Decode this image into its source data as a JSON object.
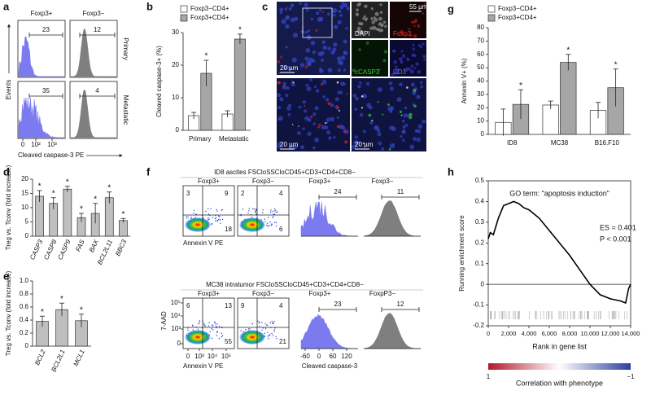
{
  "panel_a": {
    "label": "a",
    "columns": [
      "Foxp3+",
      "Foxp3−"
    ],
    "rows": [
      "Primary",
      "Metastatic"
    ],
    "gates": [
      [
        23,
        12
      ],
      [
        35,
        4
      ]
    ],
    "ylabel": "Events",
    "xticks": [
      0,
      {
        "value": 100,
        "label": "10²"
      },
      {
        "value": 1000,
        "label": "10³"
      }
    ],
    "xlabel": "Cleaved caspase-3 PE"
  },
  "panel_c": {
    "label": "c",
    "channels": [
      "DAPI",
      "Foxp3",
      "cCASP3",
      "CD3"
    ],
    "scale_bars": [
      "55 µm",
      "20 µm",
      "20 µm",
      "20 µm"
    ]
  },
  "panel_f": {
    "label": "f",
    "groups": [
      {
        "title": "ID8 ascites FSCloSSCloCD45+CD3+CD4+CD8−",
        "plots": [
          "Foxp3+",
          "Foxp3−"
        ],
        "quadrants": [
          [
            3,
            9,
            18
          ],
          [
            2,
            4,
            6
          ]
        ],
        "hists": [
          "Foxp3+",
          "Foxp3−"
        ],
        "gates": [
          24,
          11
        ]
      },
      {
        "title": "MC38 intratumor FSCloSSCloCD45+CD3+CD4+CD8−",
        "plots": [
          "Foxp3+",
          "Foxp3−"
        ],
        "quadrants": [
          [
            6,
            13,
            55
          ],
          [
            9,
            4,
            21
          ]
        ],
        "hists": [
          "Foxp3+",
          "FoxpP3−"
        ],
        "gates": [
          23,
          12
        ]
      }
    ],
    "dot_ylabel": "7-AAD",
    "dot_yticks": [
      {
        "value": 100000,
        "label": "10⁵"
      },
      {
        "value": 10000,
        "label": "10⁴"
      },
      {
        "value": 1000,
        "label": "10³"
      },
      0
    ],
    "dot_xticks": [
      0,
      {
        "value": 1000,
        "label": "10³"
      },
      {
        "value": 10000,
        "label": "10⁴"
      },
      {
        "value": 100000,
        "label": "10⁵"
      }
    ],
    "dot_xlabel": "Annexin V PE",
    "hist_xticks": [
      -60,
      0,
      60,
      120
    ],
    "hist_xlabel": "Cleaved caspase-3"
  },
  "chart_data": [
    {
      "type": "bar",
      "panel": "b",
      "legend": "top",
      "categories": [
        "Primary",
        "Metastatic"
      ],
      "series": [
        {
          "name": "Foxp3−CD4+",
          "color": "#ffffff",
          "values": [
            4.5,
            5
          ],
          "errors": [
            1,
            1
          ]
        },
        {
          "name": "Foxp3+CD4+",
          "color": "#a6a6a6",
          "values": [
            17.5,
            28
          ],
          "errors": [
            4,
            1.5
          ],
          "annotations": [
            "*",
            "*"
          ]
        }
      ],
      "ylim": [
        0,
        30
      ],
      "yticks": [
        0,
        10,
        20,
        30
      ],
      "ylabel": "Cleaved caspase-3+ (%)"
    },
    {
      "type": "bar",
      "panel": "d",
      "categories": [
        "CASP3",
        "CASP8",
        "CASP9",
        "FAS",
        "BAX",
        "BCL2L11",
        "BBC3"
      ],
      "series": [
        {
          "color": "#bfbfbf",
          "values": [
            14,
            11.5,
            16.5,
            6.5,
            8,
            13.5,
            5.5
          ],
          "errors": [
            2,
            2,
            1,
            1.5,
            3.5,
            2,
            0.7
          ],
          "annotations": [
            "*",
            "*",
            "*",
            "*",
            "*",
            "*",
            "*"
          ]
        }
      ],
      "ylim": [
        0,
        20
      ],
      "yticks": [
        0,
        5,
        10,
        15,
        20
      ],
      "ylabel": "Treg vs. Tconv (fold increase)"
    },
    {
      "type": "bar",
      "panel": "e",
      "categories": [
        "BCL2",
        "BCL2L1",
        "MCL1"
      ],
      "series": [
        {
          "color": "#bfbfbf",
          "values": [
            0.38,
            0.56,
            0.39
          ],
          "errors": [
            0.08,
            0.1,
            0.1
          ],
          "annotations": [
            "*",
            "*",
            "*"
          ]
        }
      ],
      "ylim": [
        0,
        1
      ],
      "yticks": [
        0,
        0.2,
        0.4,
        0.6,
        0.8,
        {
          "value": 1,
          "label": "1.0"
        }
      ],
      "ylabel": "Treg vs. Tconv (fold increase)"
    },
    {
      "type": "bar",
      "panel": "g",
      "legend": "top",
      "categories": [
        "ID8",
        "MC38",
        "B16.F10"
      ],
      "series": [
        {
          "name": "Foxp3−CD4+",
          "color": "#ffffff",
          "values": [
            9,
            22,
            18
          ],
          "errors": [
            10,
            3,
            6
          ]
        },
        {
          "name": "Foxp3+CD4+",
          "color": "#a6a6a6",
          "values": [
            22.5,
            54,
            35
          ],
          "errors": [
            11,
            6,
            14
          ],
          "annotations": [
            "*",
            "*",
            "*"
          ]
        }
      ],
      "ylim": [
        0,
        80
      ],
      "yticks": [
        0,
        10,
        20,
        30,
        40,
        50,
        60,
        70,
        80
      ],
      "ylabel": "Annexin V+ (%)"
    },
    {
      "type": "line",
      "panel": "h",
      "title": "GO term: “apoptosis induction”",
      "annotations": [
        "ES = 0.401",
        "P < 0.001"
      ],
      "x": [
        0,
        200,
        500,
        1000,
        1500,
        2000,
        2500,
        3000,
        3500,
        4000,
        5000,
        6000,
        7000,
        8000,
        9000,
        10000,
        11000,
        12000,
        13000,
        13500,
        13800,
        14000
      ],
      "series": [
        {
          "color": "#000000",
          "values": [
            0.22,
            0.25,
            0.24,
            0.32,
            0.38,
            0.39,
            0.4,
            0.39,
            0.37,
            0.36,
            0.32,
            0.26,
            0.2,
            0.14,
            0.07,
            0,
            -0.05,
            -0.07,
            -0.08,
            -0.09,
            -0.02,
            0
          ]
        }
      ],
      "xlim": [
        0,
        14000
      ],
      "xticks": [
        0,
        {
          "value": 2000,
          "label": "2,000"
        },
        {
          "value": 4000,
          "label": "4,000"
        },
        {
          "value": 6000,
          "label": "6,000"
        },
        {
          "value": 8000,
          "label": "8,000"
        },
        {
          "value": 10000,
          "label": "10,000"
        },
        {
          "value": 12000,
          "label": "12,000"
        },
        {
          "value": 14000,
          "label": "14,000"
        }
      ],
      "ylim": [
        -0.2,
        0.5
      ],
      "yticks": [
        -0.2,
        -0.1,
        0,
        0.1,
        0.2,
        0.3,
        0.4,
        0.5
      ],
      "xlabel": "Rank in gene list",
      "ylabel": "Running enrichment score",
      "colorbar": {
        "label": "Correlation with phenotype",
        "ticks": [
          1,
          {
            "value": -1,
            "label": "−1"
          }
        ]
      }
    }
  ]
}
